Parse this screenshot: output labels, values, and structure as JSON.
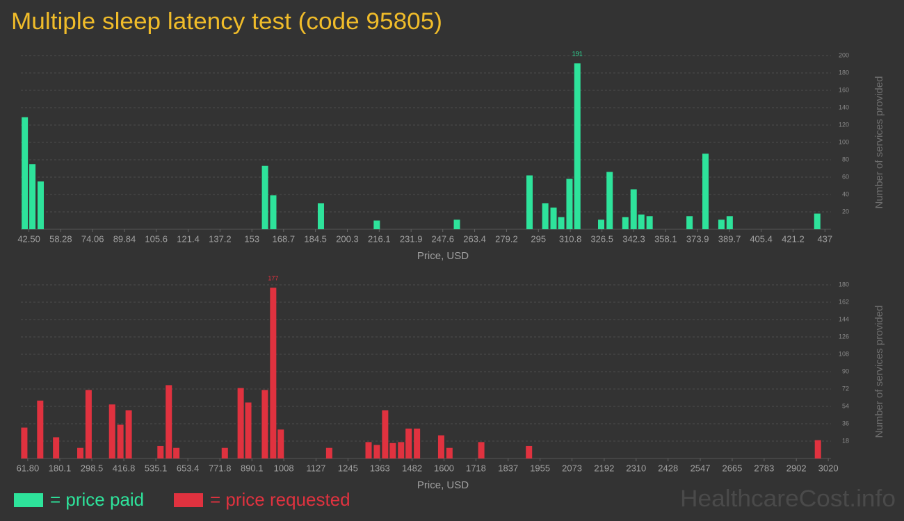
{
  "title": "Multiple sleep latency test (code 95805)",
  "watermark": "HealthcareCost.info",
  "chart_data": [
    {
      "type": "bar",
      "x_label": "Price, USD",
      "y_label": "Number of services provided",
      "x": [
        40.45,
        44.21,
        48.32,
        159.5,
        163.6,
        187.2,
        214.9,
        254.6,
        290.6,
        298.4,
        302.5,
        306.3,
        310.4,
        314.3,
        326.1,
        330.3,
        338.1,
        342.2,
        346.0,
        350.1,
        369.9,
        377.8,
        385.7,
        389.8,
        433.2
      ],
      "series": [
        {
          "name": "= price paid",
          "color": "#2ee39b",
          "values": [
            129,
            75,
            55,
            73,
            39,
            30,
            10,
            11,
            62,
            30,
            25,
            14,
            58,
            191,
            11,
            66,
            14,
            46,
            17,
            15,
            15,
            87,
            11,
            15,
            18
          ]
        }
      ],
      "xlim": [
        38.5,
        440
      ],
      "xticks": [
        {
          "value": 42.5,
          "label": "42.50"
        },
        58.28,
        74.06,
        89.84,
        105.6,
        121.4,
        137.2,
        153,
        168.7,
        184.5,
        200.3,
        216.1,
        231.9,
        247.6,
        263.4,
        279.2,
        295,
        310.8,
        326.5,
        342.3,
        358.1,
        373.9,
        389.7,
        405.4,
        421.2,
        437
      ],
      "ylim": [
        0,
        200
      ],
      "yticks": [
        20,
        40,
        60,
        80,
        100,
        120,
        140,
        160,
        180,
        200
      ],
      "grid": true
    },
    {
      "type": "bar",
      "x_label": "Price, USD",
      "y_label": "Number of services provided",
      "x": [
        49.0,
        107.8,
        166.5,
        256.0,
        286.6,
        373.5,
        404.1,
        434.8,
        552.3,
        583.0,
        611.0,
        789.9,
        848.6,
        876.7,
        938.0,
        968.7,
        996.8,
        1175.6,
        1321.2,
        1351.9,
        1382.5,
        1410.6,
        1441.3,
        1469.4,
        1500.1,
        1589.5,
        1620.1,
        1737.7,
        1914.0,
        2981.7
      ],
      "series": [
        {
          "name": "= price requested",
          "color": "#e0323f",
          "values": [
            32,
            60,
            22,
            11,
            71,
            56,
            35,
            50,
            13,
            76,
            11,
            11,
            73,
            58,
            71,
            177,
            30,
            11,
            17,
            14,
            50,
            16,
            17,
            31,
            31,
            24,
            11,
            17,
            13,
            19
          ]
        }
      ],
      "xlim": [
        36.3,
        3030
      ],
      "xticks": [
        {
          "value": 61.8,
          "label": "61.80"
        },
        180.1,
        298.5,
        416.8,
        535.1,
        653.4,
        771.8,
        890.1,
        1008,
        1127,
        1245,
        1363,
        1482,
        1600,
        1718,
        1837,
        1955,
        2073,
        2192,
        2310,
        2428,
        2547,
        2665,
        2783,
        2902,
        3020
      ],
      "ylim": [
        0,
        180
      ],
      "yticks": [
        18,
        36,
        54,
        72,
        90,
        108,
        126,
        144,
        162,
        180
      ],
      "grid": true
    }
  ]
}
